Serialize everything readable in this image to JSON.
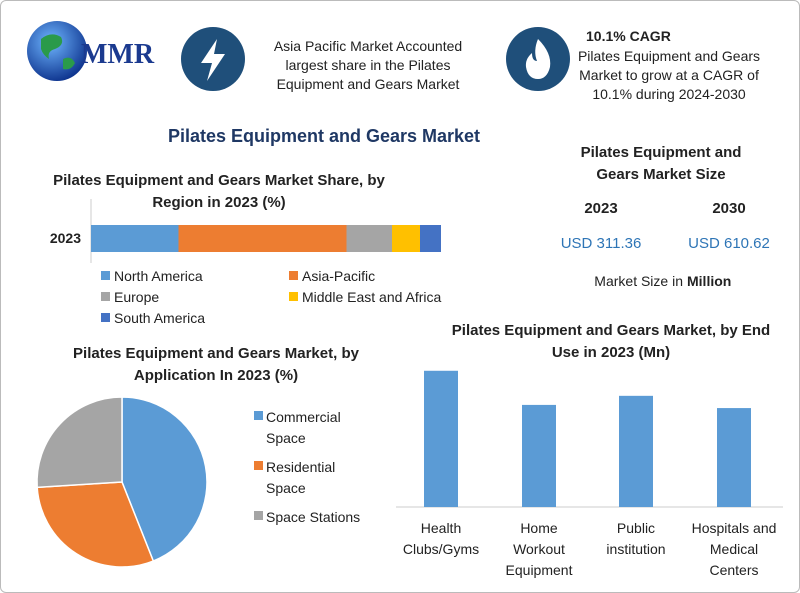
{
  "header": {
    "logo": "MMR",
    "highlight": "Asia Pacific Market Accounted largest share in the Pilates Equipment and Gears Market",
    "cagr_title": "10.1% CAGR",
    "cagr_text": "Pilates Equipment and Gears Market to grow at a CAGR of 10.1% during 2024-2030"
  },
  "title": "Pilates Equipment and Gears Market",
  "market_size": {
    "title": "Pilates Equipment and Gears Market Size",
    "years": [
      "2023",
      "2030"
    ],
    "values": [
      "USD 311.36",
      "USD 610.62"
    ],
    "unit_prefix": "Market Size in",
    "unit": "Million"
  },
  "chart_data": [
    {
      "type": "stacked_bar",
      "title": "Pilates Equipment and Gears Market Share, by Region in 2023 (%)",
      "categories": [
        "2023"
      ],
      "series": [
        {
          "name": "North America",
          "color": "#5b9bd5",
          "values": [
            25
          ]
        },
        {
          "name": "Asia-Pacific",
          "color": "#ed7d31",
          "values": [
            48
          ]
        },
        {
          "name": "Europe",
          "color": "#a5a5a5",
          "values": [
            13
          ]
        },
        {
          "name": "Middle East and Africa",
          "color": "#ffc000",
          "values": [
            8
          ]
        },
        {
          "name": "South America",
          "color": "#4472c4",
          "values": [
            6
          ]
        }
      ]
    },
    {
      "type": "pie",
      "title": "Pilates Equipment and Gears Market, by Application In 2023 (%)",
      "categories": [
        "Commercial Space",
        "Residential Space",
        "Space Stations"
      ],
      "values": [
        44,
        30,
        26
      ],
      "colors": [
        "#5b9bd5",
        "#ed7d31",
        "#a5a5a5"
      ]
    },
    {
      "type": "bar",
      "title": "Pilates Equipment and Gears Market, by End Use in 2023 (Mn)",
      "categories": [
        "Health Clubs/Gyms",
        "Home Workout Equipment",
        "Public institution",
        "Hospitals and Medical Centers"
      ],
      "values": [
        94.6,
        70.9,
        77.2,
        68.7
      ],
      "color": "#5b9bd5"
    }
  ]
}
